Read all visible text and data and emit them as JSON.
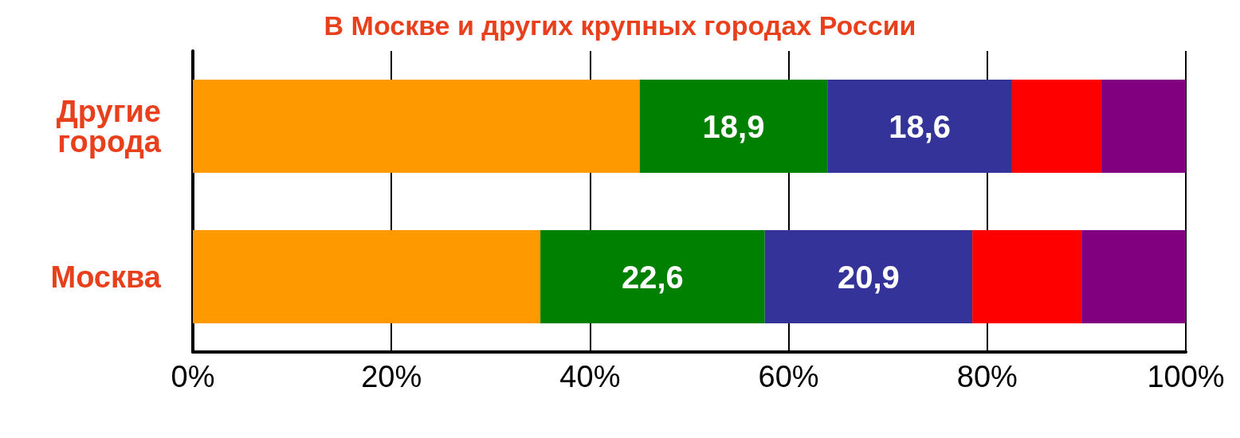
{
  "chart_data": {
    "type": "bar",
    "orientation": "horizontal",
    "stacked": true,
    "title": "В Москве и других крупных городах России",
    "categories": [
      "Другие\nгорода",
      "Москва"
    ],
    "series": [
      {
        "color": "#ff9900",
        "values": [
          45,
          35
        ],
        "value_labels": [
          null,
          null
        ]
      },
      {
        "color": "#008000",
        "values": [
          18.9,
          22.6
        ],
        "value_labels": [
          "18,9",
          "22,6"
        ]
      },
      {
        "color": "#333399",
        "values": [
          18.6,
          20.9
        ],
        "value_labels": [
          "18,6",
          "20,9"
        ]
      },
      {
        "color": "#ff0000",
        "values": [
          9,
          11
        ],
        "value_labels": [
          null,
          null
        ]
      },
      {
        "color": "#800080",
        "values": [
          8.5,
          10.5
        ],
        "value_labels": [
          null,
          null
        ]
      }
    ],
    "xlim": [
      0,
      100
    ],
    "xticks": [
      {
        "value": 0,
        "label": "0%"
      },
      {
        "value": 20,
        "label": "20%"
      },
      {
        "value": 40,
        "label": "40%"
      },
      {
        "value": 60,
        "label": "60%"
      },
      {
        "value": 80,
        "label": "80%"
      },
      {
        "value": 100,
        "label": "100%"
      }
    ],
    "grid": "x"
  }
}
